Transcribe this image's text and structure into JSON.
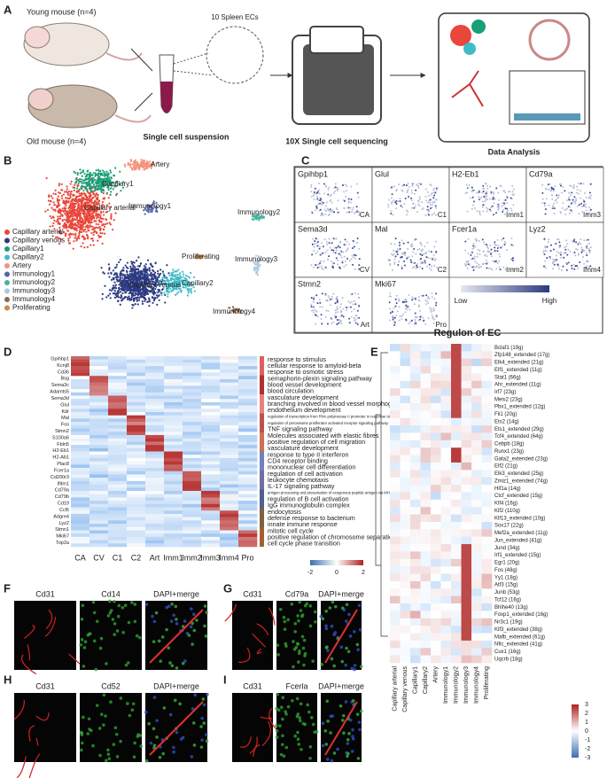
{
  "panel_letters": [
    "A",
    "B",
    "C",
    "D",
    "E",
    "F",
    "G",
    "H",
    "I"
  ],
  "panel_a": {
    "young": "Young mouse (n=4)",
    "old": "Old mouse (n=4)",
    "ecs": "10 Spleen ECs",
    "suspension": "Single cell suspension",
    "sequencing": "10X Single cell sequencing",
    "analysis": "Data Analysis"
  },
  "panel_b": {
    "clusters": [
      {
        "name": "Capillary arterial",
        "color": "#e8473a"
      },
      {
        "name": "Capillary venous",
        "color": "#2c3a80"
      },
      {
        "name": "Capillary1",
        "color": "#1a9e77"
      },
      {
        "name": "Capillary2",
        "color": "#3ebcc9"
      },
      {
        "name": "Artery",
        "color": "#f2947a"
      },
      {
        "name": "Immunology1",
        "color": "#5566a8"
      },
      {
        "name": "Immunology2",
        "color": "#45b39d"
      },
      {
        "name": "Immunology3",
        "color": "#a9c9e2"
      },
      {
        "name": "Immunology4",
        "color": "#8a6a50"
      },
      {
        "name": "Proliferating",
        "color": "#c98a4a"
      }
    ]
  },
  "panel_c": {
    "plots": [
      {
        "gene": "Gpihbp1",
        "cluster": "CA"
      },
      {
        "gene": "Glul",
        "cluster": "C1"
      },
      {
        "gene": "H2-Eb1",
        "cluster": "Imm1"
      },
      {
        "gene": "Cd79a",
        "cluster": "Imm3"
      },
      {
        "gene": "Sema3d",
        "cluster": "CV"
      },
      {
        "gene": "Mal",
        "cluster": "C2"
      },
      {
        "gene": "Fcer1a",
        "cluster": "Imm2"
      },
      {
        "gene": "Lyz2",
        "cluster": "Imm4"
      },
      {
        "gene": "Stmn2",
        "cluster": "Art"
      },
      {
        "gene": "Mki67",
        "cluster": "Pro"
      }
    ],
    "low": "Low",
    "high": "High"
  },
  "panel_d": {
    "genes": [
      "Gpihbp1",
      "Kcnj8",
      "Cd36",
      "Bsg",
      "Sema3c",
      "Adamts5",
      "Sema3d",
      "Glul",
      "Kdr",
      "Mal",
      "Fos",
      "Stmn2",
      "S100a6",
      "Fbln5",
      "H2-Eb1",
      "H2-Ab1",
      "Plac8",
      "Fcer1a",
      "Cd200r3",
      "Ifitm1",
      "Cd79a",
      "Cd79b",
      "Cd19",
      "Ccl5",
      "Adgre4",
      "Lyz2",
      "Stmn1",
      "Mki67",
      "Top2a"
    ],
    "terms": [
      "response to stimulus",
      "cellular response to amyloid-beta",
      "response to osmotic stress",
      "semaphorin-plexin signaling pathway",
      "blood vessel development",
      "blood circulation",
      "vasculature development",
      "branching involved in blood vessel morphogenesis",
      "endothelium development",
      "regulation of transcription from RNA polymerase II promoter in response to stress",
      "regulation of peroxisome proliferator activated receptor signaling pathway",
      "TNF signaling pathway",
      "Molecules associated with elastic fibres",
      "positive regulation of cell migration",
      "vasculature development",
      "response to type II interferon",
      "CD4 receptor binding",
      "mononuclear cell differentiation",
      "regulation of cell activation",
      "leukocyte chemotaxis",
      "IL-17 signaling pathway",
      "antigen processing and presentation of exogenous peptide antigen via MHC class II",
      "regulation of B cell activation",
      "IgG immunoglobulin complex",
      "endocytosis",
      "defense response to bacterium",
      "innate immune response",
      "mitotic cell cycle",
      "positive regulation of chromosome separation",
      "cell cycle phase transition"
    ],
    "columns": [
      "CA",
      "CV",
      "C1",
      "C2",
      "Art",
      "Imm1",
      "Imm2",
      "Imm3",
      "Imm4",
      "Pro"
    ],
    "scale": [
      -2,
      0,
      2
    ]
  },
  "panel_e": {
    "title": "Regulon of EC",
    "regulons": [
      "Bclaf1 (19g)",
      "Zfp148_extended (17g)",
      "Elk4_extended (21g)",
      "Elf1_extended (11g)",
      "Stat1 (66g)",
      "Ahr_extended (11g)",
      "Irf7 (23g)",
      "Meis2 (23g)",
      "Pbx1_extended (12g)",
      "Fli1 (20g)",
      "Ets2 (14g)",
      "Ets1_extended (29g)",
      "Tcf4_extended (64g)",
      "Cebpb (18g)",
      "Runx1 (23g)",
      "Gata2_extended (23g)",
      "Elf2 (21g)",
      "Elk3_extended (25g)",
      "Zmiz1_extended (74g)",
      "Hif1a (14g)",
      "Ctcf_extended (15g)",
      "Klf4 (16g)",
      "Klf2 (110g)",
      "Klf13_extended (10g)",
      "Sox17 (22g)",
      "Mef2a_extended (11g)",
      "Jun_extended (41g)",
      "Jund (34g)",
      "Irf1_extended (15g)",
      "Egr1 (20g)",
      "Fos (48g)",
      "Yy1 (18g)",
      "Atf3 (15g)",
      "Junb (53g)",
      "Tcf12 (16g)",
      "Bhlhe40 (13g)",
      "Foxp1_extended (16g)",
      "Nr3c1 (19g)",
      "Klf3_extended (38g)",
      "Mafb_extended (61g)",
      "Nfic_extended (41g)",
      "Cux1 (16g)",
      "Uqcrb (18g)"
    ],
    "columns": [
      "Capillary arterial",
      "Capillary venous",
      "Capillary1",
      "Capillary2",
      "Artery",
      "Immunology1",
      "Immunology2",
      "Immunology3",
      "Immunology4",
      "Proliferating"
    ],
    "scale": [
      3,
      2,
      1,
      0,
      -1,
      -2,
      -3
    ]
  },
  "panel_f": [
    "Cd31",
    "Cd14",
    "DAPI+merge"
  ],
  "panel_g": [
    "Cd31",
    "Cd79a",
    "DAPI+merge"
  ],
  "panel_h": [
    "Cd31",
    "Cd52",
    "DAPI+merge"
  ],
  "panel_i": [
    "Cd31",
    "Fcerla",
    "DAPI+merge"
  ]
}
